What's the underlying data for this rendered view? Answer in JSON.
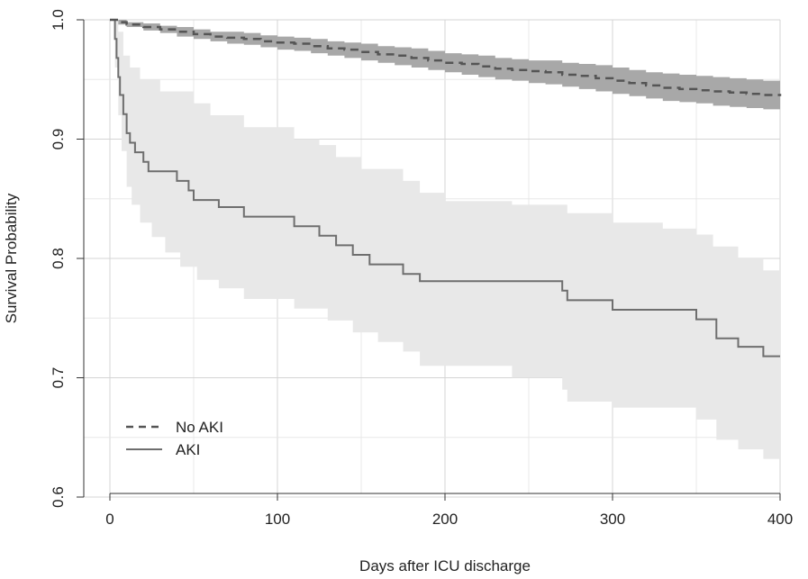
{
  "chart_data": {
    "type": "line",
    "xlabel": "Days after ICU discharge",
    "ylabel": "Survival Probability",
    "xlim": [
      0,
      400
    ],
    "ylim": [
      0.6,
      1.0
    ],
    "x_ticks": [
      "0",
      "100",
      "200",
      "300",
      "400"
    ],
    "y_ticks": [
      "0.6",
      "0.7",
      "0.8",
      "0.9",
      "1.0"
    ],
    "grid": true,
    "legend_position": "bottom-left",
    "series": [
      {
        "name": "No AKI",
        "line_style": "dashed",
        "line_color": "#555555",
        "band_color": "#a8a8a8",
        "steps": [
          [
            0,
            1.0
          ],
          [
            5,
            0.998
          ],
          [
            10,
            0.996
          ],
          [
            20,
            0.994
          ],
          [
            30,
            0.992
          ],
          [
            40,
            0.99
          ],
          [
            50,
            0.988
          ],
          [
            60,
            0.986
          ],
          [
            70,
            0.985
          ],
          [
            80,
            0.984
          ],
          [
            90,
            0.982
          ],
          [
            100,
            0.981
          ],
          [
            110,
            0.98
          ],
          [
            120,
            0.978
          ],
          [
            130,
            0.976
          ],
          [
            140,
            0.975
          ],
          [
            150,
            0.973
          ],
          [
            160,
            0.971
          ],
          [
            170,
            0.97
          ],
          [
            180,
            0.968
          ],
          [
            190,
            0.966
          ],
          [
            200,
            0.964
          ],
          [
            210,
            0.963
          ],
          [
            220,
            0.961
          ],
          [
            230,
            0.959
          ],
          [
            240,
            0.958
          ],
          [
            250,
            0.957
          ],
          [
            260,
            0.956
          ],
          [
            270,
            0.954
          ],
          [
            280,
            0.953
          ],
          [
            290,
            0.951
          ],
          [
            300,
            0.949
          ],
          [
            310,
            0.947
          ],
          [
            320,
            0.945
          ],
          [
            330,
            0.943
          ],
          [
            340,
            0.942
          ],
          [
            350,
            0.941
          ],
          [
            360,
            0.94
          ],
          [
            370,
            0.939
          ],
          [
            380,
            0.938
          ],
          [
            390,
            0.937
          ],
          [
            400,
            0.936
          ]
        ],
        "ci_lower": [
          [
            0,
            1.0
          ],
          [
            5,
            0.996
          ],
          [
            10,
            0.994
          ],
          [
            20,
            0.991
          ],
          [
            30,
            0.989
          ],
          [
            40,
            0.986
          ],
          [
            50,
            0.984
          ],
          [
            60,
            0.982
          ],
          [
            70,
            0.98
          ],
          [
            80,
            0.979
          ],
          [
            90,
            0.977
          ],
          [
            100,
            0.975
          ],
          [
            110,
            0.974
          ],
          [
            120,
            0.972
          ],
          [
            130,
            0.97
          ],
          [
            140,
            0.968
          ],
          [
            150,
            0.966
          ],
          [
            160,
            0.964
          ],
          [
            170,
            0.962
          ],
          [
            180,
            0.96
          ],
          [
            190,
            0.958
          ],
          [
            200,
            0.956
          ],
          [
            210,
            0.954
          ],
          [
            220,
            0.952
          ],
          [
            230,
            0.95
          ],
          [
            240,
            0.949
          ],
          [
            250,
            0.947
          ],
          [
            260,
            0.946
          ],
          [
            270,
            0.944
          ],
          [
            280,
            0.942
          ],
          [
            290,
            0.94
          ],
          [
            300,
            0.938
          ],
          [
            310,
            0.936
          ],
          [
            320,
            0.934
          ],
          [
            330,
            0.932
          ],
          [
            340,
            0.931
          ],
          [
            350,
            0.93
          ],
          [
            360,
            0.928
          ],
          [
            370,
            0.927
          ],
          [
            380,
            0.926
          ],
          [
            390,
            0.925
          ],
          [
            400,
            0.924
          ]
        ],
        "ci_upper": [
          [
            0,
            1.0
          ],
          [
            5,
            1.0
          ],
          [
            10,
            0.998
          ],
          [
            20,
            0.997
          ],
          [
            30,
            0.995
          ],
          [
            40,
            0.994
          ],
          [
            50,
            0.992
          ],
          [
            60,
            0.99
          ],
          [
            70,
            0.99
          ],
          [
            80,
            0.989
          ],
          [
            90,
            0.987
          ],
          [
            100,
            0.986
          ],
          [
            110,
            0.985
          ],
          [
            120,
            0.984
          ],
          [
            130,
            0.982
          ],
          [
            140,
            0.981
          ],
          [
            150,
            0.98
          ],
          [
            160,
            0.978
          ],
          [
            170,
            0.977
          ],
          [
            180,
            0.976
          ],
          [
            190,
            0.974
          ],
          [
            200,
            0.972
          ],
          [
            210,
            0.971
          ],
          [
            220,
            0.97
          ],
          [
            230,
            0.968
          ],
          [
            240,
            0.967
          ],
          [
            250,
            0.966
          ],
          [
            260,
            0.966
          ],
          [
            270,
            0.964
          ],
          [
            280,
            0.963
          ],
          [
            290,
            0.962
          ],
          [
            300,
            0.96
          ],
          [
            310,
            0.958
          ],
          [
            320,
            0.956
          ],
          [
            330,
            0.955
          ],
          [
            340,
            0.954
          ],
          [
            350,
            0.953
          ],
          [
            360,
            0.952
          ],
          [
            370,
            0.951
          ],
          [
            380,
            0.95
          ],
          [
            390,
            0.949
          ],
          [
            400,
            0.948
          ]
        ]
      },
      {
        "name": "AKI",
        "line_style": "solid",
        "line_color": "#6e6e6e",
        "band_color": "#e8e8e8",
        "steps": [
          [
            0,
            1.0
          ],
          [
            3,
            0.984
          ],
          [
            4,
            0.968
          ],
          [
            5,
            0.952
          ],
          [
            6,
            0.937
          ],
          [
            8,
            0.921
          ],
          [
            10,
            0.905
          ],
          [
            12,
            0.897
          ],
          [
            15,
            0.889
          ],
          [
            20,
            0.881
          ],
          [
            23,
            0.873
          ],
          [
            40,
            0.865
          ],
          [
            47,
            0.857
          ],
          [
            50,
            0.849
          ],
          [
            55,
            0.849
          ],
          [
            65,
            0.843
          ],
          [
            80,
            0.835
          ],
          [
            110,
            0.827
          ],
          [
            125,
            0.819
          ],
          [
            135,
            0.811
          ],
          [
            145,
            0.803
          ],
          [
            155,
            0.795
          ],
          [
            175,
            0.787
          ],
          [
            185,
            0.781
          ],
          [
            270,
            0.773
          ],
          [
            273,
            0.765
          ],
          [
            300,
            0.757
          ],
          [
            335,
            0.757
          ],
          [
            350,
            0.749
          ],
          [
            362,
            0.733
          ],
          [
            375,
            0.726
          ],
          [
            390,
            0.718
          ],
          [
            400,
            0.718
          ]
        ],
        "ci_lower": [
          [
            0,
            1.0
          ],
          [
            3,
            0.96
          ],
          [
            5,
            0.92
          ],
          [
            7,
            0.89
          ],
          [
            10,
            0.86
          ],
          [
            13,
            0.845
          ],
          [
            18,
            0.83
          ],
          [
            25,
            0.818
          ],
          [
            33,
            0.805
          ],
          [
            42,
            0.793
          ],
          [
            52,
            0.782
          ],
          [
            65,
            0.775
          ],
          [
            80,
            0.766
          ],
          [
            90,
            0.766
          ],
          [
            110,
            0.758
          ],
          [
            130,
            0.748
          ],
          [
            145,
            0.738
          ],
          [
            160,
            0.73
          ],
          [
            175,
            0.722
          ],
          [
            185,
            0.71
          ],
          [
            220,
            0.71
          ],
          [
            240,
            0.7
          ],
          [
            270,
            0.69
          ],
          [
            273,
            0.68
          ],
          [
            300,
            0.675
          ],
          [
            330,
            0.675
          ],
          [
            350,
            0.665
          ],
          [
            362,
            0.648
          ],
          [
            375,
            0.64
          ],
          [
            390,
            0.632
          ],
          [
            400,
            0.632
          ]
        ],
        "ci_upper": [
          [
            0,
            1.0
          ],
          [
            3,
            1.0
          ],
          [
            5,
            0.99
          ],
          [
            8,
            0.97
          ],
          [
            12,
            0.96
          ],
          [
            18,
            0.95
          ],
          [
            30,
            0.94
          ],
          [
            50,
            0.93
          ],
          [
            60,
            0.92
          ],
          [
            80,
            0.91
          ],
          [
            110,
            0.9
          ],
          [
            125,
            0.895
          ],
          [
            135,
            0.885
          ],
          [
            150,
            0.875
          ],
          [
            175,
            0.865
          ],
          [
            185,
            0.855
          ],
          [
            200,
            0.848
          ],
          [
            240,
            0.845
          ],
          [
            268,
            0.845
          ],
          [
            273,
            0.838
          ],
          [
            300,
            0.83
          ],
          [
            330,
            0.825
          ],
          [
            350,
            0.82
          ],
          [
            360,
            0.81
          ],
          [
            375,
            0.8
          ],
          [
            390,
            0.79
          ],
          [
            400,
            0.79
          ]
        ]
      }
    ]
  }
}
